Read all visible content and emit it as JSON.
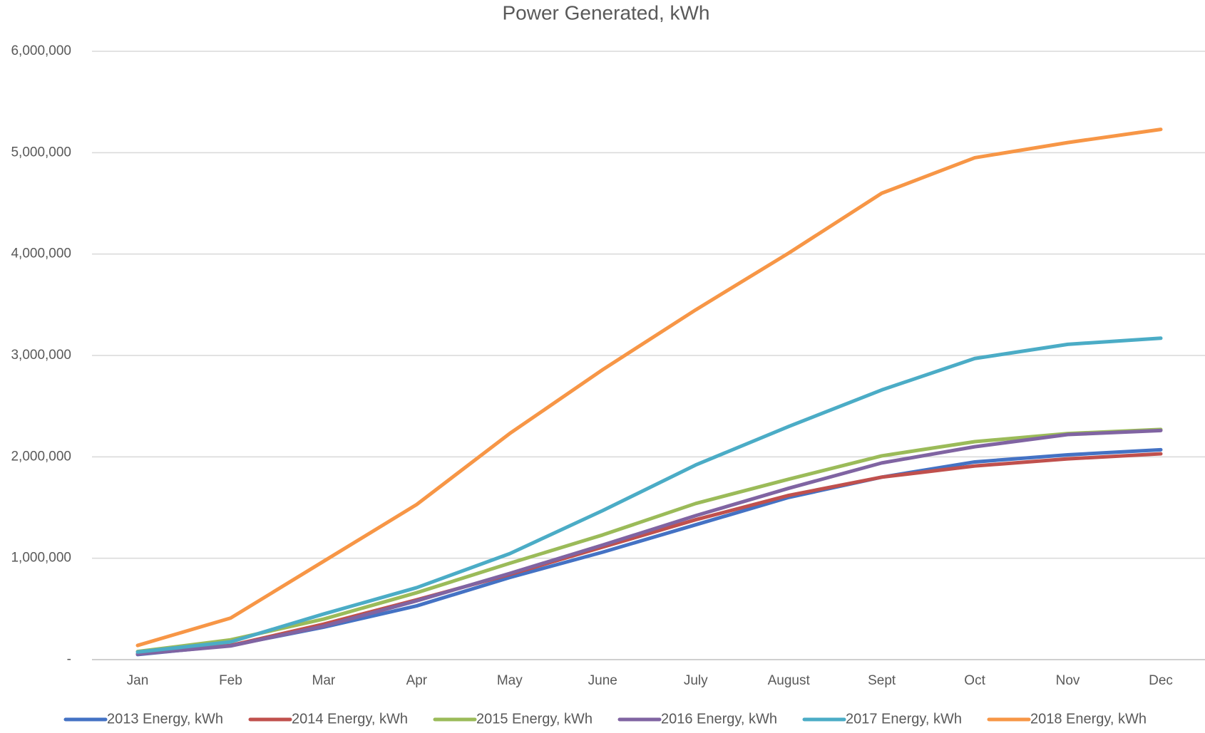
{
  "chart_data": {
    "type": "line",
    "title": "Power Generated, kWh",
    "categories": [
      "Jan",
      "Feb",
      "Mar",
      "Apr",
      "May",
      "June",
      "July",
      "August",
      "Sept",
      "Oct",
      "Nov",
      "Dec"
    ],
    "ylim": [
      0,
      6000000
    ],
    "yticks": [
      {
        "value": 0,
        "label": "-"
      },
      {
        "value": 1000000,
        "label": "1,000,000"
      },
      {
        "value": 2000000,
        "label": "2,000,000"
      },
      {
        "value": 3000000,
        "label": "3,000,000"
      },
      {
        "value": 4000000,
        "label": "4,000,000"
      },
      {
        "value": 5000000,
        "label": "5,000,000"
      },
      {
        "value": 6000000,
        "label": "6,000,000"
      }
    ],
    "grid": true,
    "legend": "bottom",
    "series": [
      {
        "name": "2013 Energy, kWh",
        "color": "#4472c4",
        "values": [
          50000,
          140000,
          320000,
          530000,
          810000,
          1060000,
          1330000,
          1600000,
          1800000,
          1950000,
          2020000,
          2070000
        ]
      },
      {
        "name": "2014 Energy, kWh",
        "color": "#c0504d",
        "values": [
          55000,
          140000,
          350000,
          590000,
          840000,
          1110000,
          1380000,
          1620000,
          1800000,
          1910000,
          1980000,
          2030000
        ]
      },
      {
        "name": "2015 Energy, kWh",
        "color": "#9bbb59",
        "values": [
          80000,
          195000,
          400000,
          660000,
          950000,
          1230000,
          1540000,
          1780000,
          2010000,
          2150000,
          2230000,
          2270000
        ]
      },
      {
        "name": "2016 Energy, kWh",
        "color": "#8064a2",
        "values": [
          55000,
          135000,
          330000,
          580000,
          850000,
          1130000,
          1420000,
          1690000,
          1940000,
          2100000,
          2220000,
          2260000
        ]
      },
      {
        "name": "2017 Energy, kWh",
        "color": "#4bacc6",
        "values": [
          75000,
          175000,
          450000,
          710000,
          1045000,
          1470000,
          1920000,
          2300000,
          2660000,
          2970000,
          3110000,
          3170000
        ]
      },
      {
        "name": "2018 Energy, kWh",
        "color": "#f79646",
        "values": [
          140000,
          410000,
          970000,
          1530000,
          2230000,
          2860000,
          3450000,
          4010000,
          4600000,
          4950000,
          5100000,
          5230000
        ]
      }
    ]
  }
}
